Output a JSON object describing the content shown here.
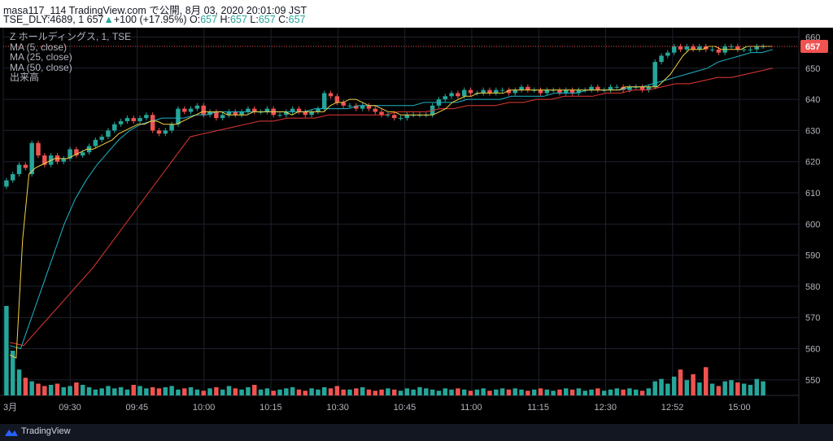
{
  "header": {
    "line1": "masa117_114 TradingView.com で公開, 8月 03, 2020 20:01:09 JST",
    "symbol_prefix": "TSE_DLY:4689, 1 657",
    "change": "+100 (+17.95%)",
    "o_label": "O:",
    "o_value": "657",
    "h_label": "H:",
    "h_value": "657",
    "l_label": "L:",
    "l_value": "657",
    "c_label": "C:",
    "c_value": "657"
  },
  "legend": {
    "title": "Z ホールディングス, 1, TSE",
    "ma5": "MA (5, close)",
    "ma25": "MA (25, close)",
    "ma50": "MA (50, close)",
    "volume": "出来高"
  },
  "footer": {
    "brand": "TradingView"
  },
  "colors": {
    "up": "#26a69a",
    "down": "#ef5350",
    "ma5": "#f5d142",
    "ma25": "#1fb4c8",
    "ma50": "#e53935",
    "grid": "#1e222d",
    "badge": "#f05350"
  },
  "chart_data": {
    "type": "candlestick",
    "y_range": [
      545,
      663
    ],
    "y_ticks": [
      "660",
      "650",
      "640",
      "630",
      "620",
      "610",
      "600",
      "590",
      "580",
      "570",
      "560",
      "550"
    ],
    "x_ticks": [
      "3月",
      "09:30",
      "09:45",
      "10:00",
      "10:15",
      "10:30",
      "10:45",
      "11:00",
      "11:15",
      "12:30",
      "12:52",
      "15:00"
    ],
    "last_price": "657",
    "closes": [
      614,
      616,
      619,
      618,
      626,
      622,
      619,
      622,
      620,
      621,
      624,
      622,
      623,
      625,
      627,
      628,
      630,
      632,
      633,
      634,
      633,
      634,
      635,
      630,
      629,
      630,
      632,
      637,
      636,
      637,
      638,
      635,
      636,
      634,
      635,
      636,
      635,
      636,
      637,
      636,
      636,
      637,
      635,
      635,
      636,
      637,
      636,
      635,
      636,
      637,
      642,
      641,
      639,
      638,
      638,
      637,
      638,
      637,
      636,
      635,
      635,
      634,
      634,
      635,
      635,
      635,
      635,
      638,
      640,
      641,
      642,
      641,
      643,
      642,
      642,
      643,
      642,
      643,
      643,
      642,
      643,
      644,
      643,
      643,
      642,
      643,
      643,
      642,
      643,
      642,
      643,
      643,
      644,
      643,
      643,
      644,
      644,
      643,
      644,
      644,
      643,
      644,
      652,
      654,
      655,
      657,
      656,
      657,
      656,
      657,
      656,
      656,
      655,
      657,
      657,
      656,
      656,
      656,
      657,
      657
    ],
    "opens": [
      612,
      614,
      616,
      619,
      616,
      626,
      622,
      619,
      622,
      620,
      621,
      624,
      622,
      623,
      625,
      627,
      628,
      630,
      632,
      633,
      634,
      633,
      634,
      635,
      630,
      629,
      630,
      632,
      637,
      636,
      637,
      638,
      635,
      636,
      634,
      635,
      636,
      635,
      636,
      637,
      636,
      636,
      637,
      635,
      635,
      636,
      637,
      636,
      635,
      636,
      637,
      642,
      641,
      639,
      638,
      638,
      637,
      638,
      637,
      636,
      635,
      635,
      634,
      634,
      635,
      635,
      635,
      635,
      638,
      640,
      641,
      642,
      641,
      643,
      642,
      642,
      643,
      642,
      643,
      643,
      642,
      643,
      644,
      643,
      643,
      642,
      643,
      643,
      642,
      643,
      642,
      643,
      643,
      644,
      643,
      643,
      644,
      644,
      643,
      644,
      644,
      643,
      644,
      652,
      654,
      655,
      657,
      656,
      657,
      656,
      657,
      656,
      656,
      655,
      657,
      657,
      656,
      656,
      656,
      657
    ],
    "ma5": [
      558,
      557,
      595,
      616,
      618,
      619,
      620,
      621,
      621,
      621,
      622,
      623,
      624,
      624,
      625,
      626,
      627,
      629,
      630,
      631,
      632,
      632,
      633,
      633,
      632,
      632,
      632,
      633,
      634,
      635,
      636,
      636,
      636,
      636,
      635,
      635,
      635,
      635,
      636,
      636,
      636,
      636,
      636,
      636,
      635,
      636,
      636,
      636,
      636,
      636,
      638,
      639,
      639,
      640,
      640,
      639,
      638,
      638,
      637,
      636,
      636,
      635,
      635,
      635,
      635,
      635,
      635,
      636,
      637,
      639,
      640,
      641,
      641,
      642,
      642,
      642,
      642,
      642,
      643,
      643,
      643,
      643,
      643,
      643,
      643,
      643,
      643,
      643,
      643,
      643,
      643,
      643,
      643,
      643,
      643,
      643,
      644,
      644,
      644,
      644,
      644,
      644,
      646,
      648,
      651,
      654,
      656,
      656,
      656,
      657,
      657,
      656,
      656,
      656,
      656,
      657,
      657,
      657,
      657,
      657
    ],
    "ma25": [
      561,
      560,
      570,
      580,
      590,
      600,
      608,
      614,
      619,
      623,
      627,
      630,
      632,
      633,
      634,
      634,
      634,
      635,
      635,
      636,
      636,
      636,
      636,
      636,
      636,
      636,
      636,
      636,
      637,
      637,
      637,
      637,
      638,
      638,
      638,
      638,
      638,
      638,
      639,
      639,
      639,
      639,
      640,
      640,
      640,
      640,
      641,
      641,
      641,
      641,
      642,
      642,
      642,
      643,
      643,
      643,
      643,
      644,
      644,
      645,
      646,
      647,
      648,
      649,
      650,
      652,
      653,
      654,
      655,
      655,
      656
    ],
    "ma50": [
      562,
      561,
      566,
      571,
      576,
      581,
      586,
      592,
      598,
      604,
      610,
      616,
      622,
      628,
      629,
      630,
      631,
      632,
      633,
      633,
      634,
      634,
      634,
      635,
      635,
      635,
      635,
      635,
      636,
      636,
      636,
      637,
      637,
      638,
      638,
      638,
      639,
      639,
      640,
      640,
      641,
      641,
      641,
      642,
      642,
      643,
      643,
      644,
      645,
      645,
      646,
      647,
      647,
      648,
      649,
      650
    ],
    "volumes": [
      76,
      38,
      22,
      15,
      12,
      10,
      8,
      9,
      10,
      7,
      8,
      11,
      9,
      7,
      5,
      6,
      8,
      6,
      7,
      5,
      9,
      8,
      6,
      7,
      6,
      7,
      8,
      5,
      6,
      7,
      5,
      4,
      6,
      7,
      5,
      8,
      6,
      5,
      7,
      9,
      5,
      6,
      4,
      5,
      6,
      7,
      5,
      4,
      6,
      5,
      7,
      6,
      8,
      5,
      5,
      6,
      7,
      5,
      4,
      5,
      6,
      5,
      4,
      6,
      5,
      7,
      6,
      5,
      4,
      6,
      5,
      6,
      5,
      4,
      5,
      6,
      4,
      5,
      6,
      5,
      6,
      5,
      4,
      5,
      6,
      5,
      4,
      5,
      6,
      5,
      6,
      4,
      5,
      6,
      4,
      5,
      6,
      5,
      6,
      5,
      4,
      6,
      12,
      14,
      10,
      16,
      22,
      13,
      18,
      11,
      24,
      10,
      8,
      12,
      13,
      11,
      10,
      9,
      14,
      12
    ]
  }
}
